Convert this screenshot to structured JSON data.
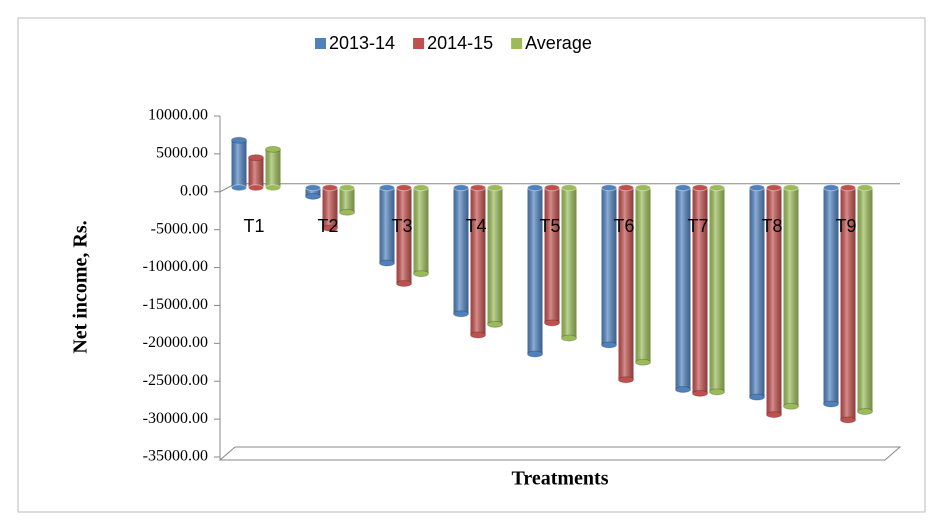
{
  "chart_data": {
    "type": "bar",
    "x_label": "Treatments",
    "y_label": "Net income, Rs.",
    "categories": [
      "T1",
      "T2",
      "T3",
      "T4",
      "T5",
      "T6",
      "T7",
      "T8",
      "T9"
    ],
    "series": [
      {
        "name": "2013-14",
        "color": "#4f81bd",
        "values": [
          6800,
          -600,
          -9400,
          -16100,
          -21400,
          -20200,
          -26100,
          -27100,
          -28000
        ]
      },
      {
        "name": "2014-15",
        "color": "#c0504d",
        "values": [
          4500,
          -4800,
          -12100,
          -18900,
          -17300,
          -24800,
          -26600,
          -29400,
          -30100
        ]
      },
      {
        "name": "Average",
        "color": "#9bbb59",
        "values": [
          5600,
          -2700,
          -10800,
          -17500,
          -19300,
          -22500,
          -26400,
          -28300,
          -29000
        ]
      }
    ],
    "ylim": [
      -35000,
      10000
    ],
    "yticks": [
      {
        "value": 10000,
        "label": "10000.00"
      },
      {
        "value": 5000,
        "label": "5000.00"
      },
      {
        "value": 0,
        "label": "0.00"
      },
      {
        "value": -5000,
        "label": "-5000.00"
      },
      {
        "value": -10000,
        "label": "-10000.00"
      },
      {
        "value": -15000,
        "label": "-15000.00"
      },
      {
        "value": -20000,
        "label": "-20000.00"
      },
      {
        "value": -25000,
        "label": "-25000.00"
      },
      {
        "value": -30000,
        "label": "-30000.00"
      },
      {
        "value": -35000,
        "label": "-35000.00"
      }
    ],
    "legend": "top"
  }
}
